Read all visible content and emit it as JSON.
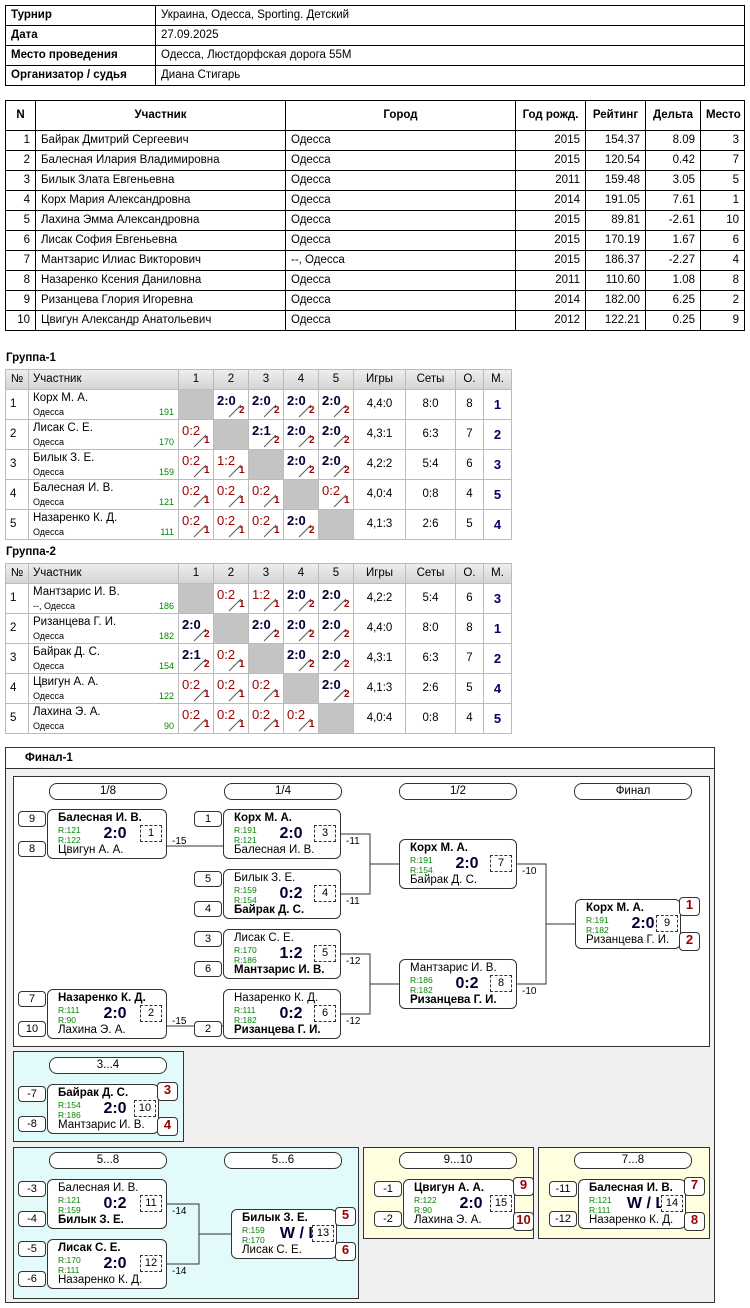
{
  "info": [
    [
      "Турнир",
      "Украина, Одесса, Sporting. Детский"
    ],
    [
      "Дата",
      "27.09.2025"
    ],
    [
      "Место проведения",
      "Одесса, Люстдорфская дорога 55М"
    ],
    [
      "Организатор / судья",
      "Диана Стигарь"
    ]
  ],
  "participants": {
    "header": [
      "N",
      "Участник",
      "Город",
      "Год рожд.",
      "Рейтинг",
      "Дельта",
      "Место"
    ],
    "rows": [
      [
        1,
        "Байрак Дмитрий Сергеевич",
        "Одесса",
        2015,
        "154.37",
        "8.09",
        3
      ],
      [
        2,
        "Балесная Илария Владимировна",
        "Одесса",
        2015,
        "120.54",
        "0.42",
        7
      ],
      [
        3,
        "Билык Злата Евгеньевна",
        "Одесса",
        2011,
        "159.48",
        "3.05",
        5
      ],
      [
        4,
        "Корх Мария Александровна",
        "Одесса",
        2014,
        "191.05",
        "7.61",
        1
      ],
      [
        5,
        "Лахина Эмма Александровна",
        "Одесса",
        2015,
        "89.81",
        "-2.61",
        10
      ],
      [
        6,
        "Лисак София Евгеньевна",
        "Одесса",
        2015,
        "170.19",
        "1.67",
        6
      ],
      [
        7,
        "Мантзарис Илиас Викторович",
        "--, Одесса",
        2015,
        "186.37",
        "-2.27",
        4
      ],
      [
        8,
        "Назаренко Ксения Даниловна",
        "Одесса",
        2011,
        "110.60",
        "1.08",
        8
      ],
      [
        9,
        "Ризанцева Глория Игоревна",
        "Одесса",
        2014,
        "182.00",
        "6.25",
        2
      ],
      [
        10,
        "Цвигун Александр Анатольевич",
        "Одесса",
        2012,
        "122.21",
        "0.25",
        9
      ]
    ]
  },
  "groups": [
    {
      "title": "Группа-1",
      "header": [
        "№",
        "Участник",
        "1",
        "2",
        "3",
        "4",
        "5",
        "Игры",
        "Сеты",
        "О.",
        "М."
      ],
      "rows": [
        {
          "n": 1,
          "name": "Корх М. А.",
          "city": "Одесса",
          "rating": 191,
          "results": [
            null,
            {
              "score": "2:0",
              "pts": 2
            },
            {
              "score": "2:0",
              "pts": 2
            },
            {
              "score": "2:0",
              "pts": 2
            },
            {
              "score": "2:0",
              "pts": 2
            }
          ],
          "games": "4,4:0",
          "sets": "8:0",
          "points": 8,
          "place": 1
        },
        {
          "n": 2,
          "name": "Лисак С. Е.",
          "city": "Одесса",
          "rating": 170,
          "results": [
            {
              "score": "0:2",
              "pts": 1
            },
            null,
            {
              "score": "2:1",
              "pts": 2
            },
            {
              "score": "2:0",
              "pts": 2
            },
            {
              "score": "2:0",
              "pts": 2
            }
          ],
          "games": "4,3:1",
          "sets": "6:3",
          "points": 7,
          "place": 2
        },
        {
          "n": 3,
          "name": "Билык З. Е.",
          "city": "Одесса",
          "rating": 159,
          "results": [
            {
              "score": "0:2",
              "pts": 1
            },
            {
              "score": "1:2",
              "pts": 1
            },
            null,
            {
              "score": "2:0",
              "pts": 2
            },
            {
              "score": "2:0",
              "pts": 2
            }
          ],
          "games": "4,2:2",
          "sets": "5:4",
          "points": 6,
          "place": 3
        },
        {
          "n": 4,
          "name": "Балесная И. В.",
          "city": "Одесса",
          "rating": 121,
          "results": [
            {
              "score": "0:2",
              "pts": 1
            },
            {
              "score": "0:2",
              "pts": 1
            },
            {
              "score": "0:2",
              "pts": 1
            },
            null,
            {
              "score": "0:2",
              "pts": 1
            }
          ],
          "games": "4,0:4",
          "sets": "0:8",
          "points": 4,
          "place": 5
        },
        {
          "n": 5,
          "name": "Назаренко К. Д.",
          "city": "Одесса",
          "rating": 111,
          "results": [
            {
              "score": "0:2",
              "pts": 1
            },
            {
              "score": "0:2",
              "pts": 1
            },
            {
              "score": "0:2",
              "pts": 1
            },
            {
              "score": "2:0",
              "pts": 2
            },
            null
          ],
          "games": "4,1:3",
          "sets": "2:6",
          "points": 5,
          "place": 4
        }
      ]
    },
    {
      "title": "Группа-2",
      "header": [
        "№",
        "Участник",
        "1",
        "2",
        "3",
        "4",
        "5",
        "Игры",
        "Сеты",
        "О.",
        "М."
      ],
      "rows": [
        {
          "n": 1,
          "name": "Мантзарис И. В.",
          "city": "--, Одесса",
          "rating": 186,
          "results": [
            null,
            {
              "score": "0:2",
              "pts": 1
            },
            {
              "score": "1:2",
              "pts": 1
            },
            {
              "score": "2:0",
              "pts": 2
            },
            {
              "score": "2:0",
              "pts": 2
            }
          ],
          "games": "4,2:2",
          "sets": "5:4",
          "points": 6,
          "place": 3
        },
        {
          "n": 2,
          "name": "Ризанцева Г. И.",
          "city": "Одесса",
          "rating": 182,
          "results": [
            {
              "score": "2:0",
              "pts": 2
            },
            null,
            {
              "score": "2:0",
              "pts": 2
            },
            {
              "score": "2:0",
              "pts": 2
            },
            {
              "score": "2:0",
              "pts": 2
            }
          ],
          "games": "4,4:0",
          "sets": "8:0",
          "points": 8,
          "place": 1
        },
        {
          "n": 3,
          "name": "Байрак Д. С.",
          "city": "Одесса",
          "rating": 154,
          "results": [
            {
              "score": "2:1",
              "pts": 2
            },
            {
              "score": "0:2",
              "pts": 1
            },
            null,
            {
              "score": "2:0",
              "pts": 2
            },
            {
              "score": "2:0",
              "pts": 2
            }
          ],
          "games": "4,3:1",
          "sets": "6:3",
          "points": 7,
          "place": 2
        },
        {
          "n": 4,
          "name": "Цвигун А. А.",
          "city": "Одесса",
          "rating": 122,
          "results": [
            {
              "score": "0:2",
              "pts": 1
            },
            {
              "score": "0:2",
              "pts": 1
            },
            {
              "score": "0:2",
              "pts": 1
            },
            null,
            {
              "score": "2:0",
              "pts": 2
            }
          ],
          "games": "4,1:3",
          "sets": "2:6",
          "points": 5,
          "place": 4
        },
        {
          "n": 5,
          "name": "Лахина Э. А.",
          "city": "Одесса",
          "rating": 90,
          "results": [
            {
              "score": "0:2",
              "pts": 1
            },
            {
              "score": "0:2",
              "pts": 1
            },
            {
              "score": "0:2",
              "pts": 1
            },
            {
              "score": "0:2",
              "pts": 1
            },
            null
          ],
          "games": "4,0:4",
          "sets": "0:8",
          "points": 4,
          "place": 5
        }
      ]
    }
  ],
  "final": {
    "title": "Финал-1",
    "rounds": [
      "1/8",
      "1/4",
      "1/2",
      "Финал"
    ],
    "section_titles": [
      "3...4",
      "5...8",
      "5...6",
      "9...10",
      "7...8"
    ],
    "matches": [
      {
        "p1": "Балесная И. В.",
        "r1": "R:121",
        "p2": "Цвигун А. А.",
        "r2": "R:122",
        "score": "2:0",
        "num": 1,
        "seed1": 9,
        "seed2": 8,
        "loss": -15
      },
      {
        "p1": "Назаренко К. Д.",
        "r1": "R:111",
        "p2": "Лахина Э. А.",
        "r2": "R:90",
        "score": "2:0",
        "num": 2,
        "seed1": 7,
        "seed2": 10,
        "loss": -15
      },
      {
        "p1": "Корх М. А.",
        "r1": "R:191",
        "p2": "Балесная И. В.",
        "r2": "R:121",
        "score": "2:0",
        "num": 3,
        "seed1": 1,
        "loss": -11
      },
      {
        "p1": "Билык З. Е.",
        "r1": "R:159",
        "p2": "Байрак Д. С.",
        "r2": "R:154",
        "score": "0:2",
        "num": 4,
        "seed1": 5,
        "seed2": 4,
        "loss": -11
      },
      {
        "p1": "Лисак С. Е.",
        "r1": "R:170",
        "p2": "Мантзарис И. В.",
        "r2": "R:186",
        "score": "1:2",
        "num": 5,
        "seed1": 3,
        "seed2": 6,
        "loss": -12
      },
      {
        "p1": "Назаренко К. Д.",
        "r1": "R:111",
        "p2": "Ризанцева Г. И.",
        "r2": "R:182",
        "score": "0:2",
        "num": 6,
        "seed2": 2,
        "loss": -12
      },
      {
        "p1": "Корх М. А.",
        "r1": "R:191",
        "p2": "Байрак Д. С.",
        "r2": "R:154",
        "score": "2:0",
        "num": 7,
        "loss": -10
      },
      {
        "p1": "Мантзарис И. В.",
        "r1": "R:186",
        "p2": "Ризанцева Г. И.",
        "r2": "R:182",
        "score": "0:2",
        "num": 8,
        "loss": -10
      },
      {
        "p1": "Корх М. А.",
        "r1": "R:191",
        "p2": "Ризанцева Г. И.",
        "r2": "R:182",
        "score": "2:0",
        "num": 9,
        "place1": 1,
        "place2": 2
      },
      {
        "p1": "Байрак Д. С.",
        "r1": "R:154",
        "p2": "Мантзарис И. В.",
        "r2": "R:186",
        "score": "2:0",
        "num": 10,
        "seed1": -7,
        "seed2": -8,
        "place1": 3,
        "place2": 4
      },
      {
        "p1": "Балесная И. В.",
        "r1": "R:121",
        "p2": "Билык З. Е.",
        "r2": "R:159",
        "score": "0:2",
        "num": 11,
        "seed1": -3,
        "seed2": -4,
        "loss": -14
      },
      {
        "p1": "Лисак С. Е.",
        "r1": "R:170",
        "p2": "Назаренко К. Д.",
        "r2": "R:111",
        "score": "2:0",
        "num": 12,
        "seed1": -5,
        "seed2": -6,
        "loss": -14
      },
      {
        "p1": "Билык З. Е.",
        "r1": "R:159",
        "p2": "Лисак С. Е.",
        "r2": "R:170",
        "score": "W / L",
        "num": 13,
        "place1": 5,
        "place2": 6
      },
      {
        "p1": "Цвигун А. А.",
        "r1": "R:122",
        "p2": "Лахина Э. А.",
        "r2": "R:90",
        "score": "2:0",
        "num": 15,
        "seed1": -1,
        "seed2": -2,
        "place1": 9,
        "place2": 10
      },
      {
        "p1": "Балесная И. В.",
        "r1": "R:121",
        "p2": "Назаренко К. Д.",
        "r2": "R:111",
        "score": "W / L",
        "num": 14,
        "seed1": -11,
        "seed2": -12,
        "place1": 7,
        "place2": 8
      }
    ]
  }
}
